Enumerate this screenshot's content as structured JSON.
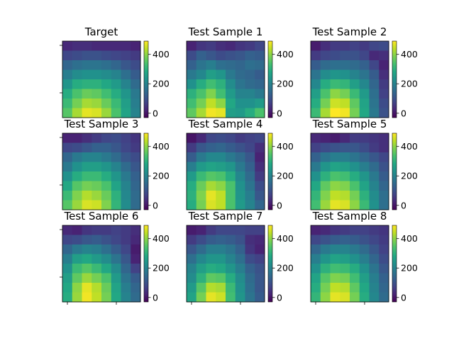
{
  "chart_data": {
    "type": "heatmap",
    "layout": {
      "rows": 3,
      "cols": 3
    },
    "colormap": "viridis",
    "colorbar": {
      "range": [
        -30,
        490
      ],
      "ticks": [
        0,
        200,
        400
      ],
      "tick_labels": [
        "0",
        "200",
        "400"
      ]
    },
    "grid": false,
    "x_ticks_shown": [
      "bottom-row only, unlabeled"
    ],
    "y_ticks_shown": [
      "left-column only, unlabeled"
    ],
    "panels": [
      {
        "title": "Target",
        "values": [
          [
            30,
            40,
            40,
            30,
            30,
            30,
            30,
            20
          ],
          [
            80,
            90,
            100,
            100,
            90,
            80,
            70,
            60
          ],
          [
            140,
            160,
            170,
            170,
            160,
            140,
            110,
            90
          ],
          [
            190,
            220,
            230,
            230,
            220,
            200,
            160,
            120
          ],
          [
            240,
            290,
            300,
            300,
            280,
            250,
            200,
            150
          ],
          [
            290,
            340,
            370,
            360,
            330,
            290,
            240,
            180
          ],
          [
            320,
            380,
            420,
            410,
            370,
            320,
            260,
            190
          ],
          [
            350,
            420,
            470,
            460,
            410,
            340,
            270,
            200
          ]
        ]
      },
      {
        "title": "Test Sample 1",
        "values": [
          [
            20,
            50,
            60,
            40,
            30,
            50,
            60,
            80
          ],
          [
            90,
            130,
            110,
            90,
            100,
            110,
            130,
            120
          ],
          [
            130,
            170,
            190,
            160,
            150,
            140,
            160,
            150
          ],
          [
            180,
            210,
            260,
            240,
            180,
            150,
            140,
            120
          ],
          [
            230,
            290,
            330,
            300,
            220,
            170,
            150,
            140
          ],
          [
            300,
            340,
            390,
            330,
            250,
            200,
            200,
            180
          ],
          [
            330,
            380,
            440,
            400,
            280,
            230,
            230,
            250
          ],
          [
            360,
            420,
            480,
            470,
            260,
            250,
            290,
            340
          ]
        ]
      },
      {
        "title": "Test Sample 2",
        "values": [
          [
            10,
            40,
            60,
            60,
            70,
            60,
            80,
            90
          ],
          [
            60,
            80,
            90,
            100,
            100,
            80,
            30,
            40
          ],
          [
            120,
            150,
            160,
            160,
            150,
            130,
            80,
            20
          ],
          [
            170,
            220,
            240,
            230,
            200,
            170,
            120,
            40
          ],
          [
            210,
            290,
            320,
            310,
            260,
            210,
            140,
            60
          ],
          [
            260,
            340,
            400,
            380,
            320,
            250,
            160,
            70
          ],
          [
            290,
            380,
            450,
            440,
            360,
            270,
            170,
            90
          ],
          [
            320,
            420,
            490,
            480,
            380,
            280,
            180,
            100
          ]
        ]
      },
      {
        "title": "Test Sample 3",
        "values": [
          [
            20,
            20,
            40,
            60,
            80,
            90,
            70,
            50
          ],
          [
            80,
            90,
            110,
            130,
            130,
            110,
            80,
            60
          ],
          [
            140,
            180,
            200,
            200,
            180,
            150,
            110,
            90
          ],
          [
            180,
            230,
            260,
            260,
            240,
            200,
            150,
            110
          ],
          [
            230,
            290,
            320,
            320,
            290,
            240,
            180,
            130
          ],
          [
            280,
            350,
            380,
            370,
            340,
            270,
            200,
            140
          ],
          [
            320,
            390,
            430,
            410,
            370,
            300,
            210,
            150
          ],
          [
            350,
            410,
            460,
            450,
            390,
            310,
            220,
            150
          ]
        ]
      },
      {
        "title": "Test Sample 4",
        "values": [
          [
            0,
            30,
            80,
            90,
            80,
            60,
            70,
            80
          ],
          [
            60,
            110,
            130,
            140,
            120,
            100,
            80,
            40
          ],
          [
            120,
            180,
            210,
            210,
            180,
            150,
            110,
            20
          ],
          [
            190,
            250,
            270,
            260,
            240,
            180,
            130,
            40
          ],
          [
            250,
            320,
            350,
            340,
            290,
            210,
            150,
            60
          ],
          [
            290,
            370,
            420,
            400,
            340,
            230,
            170,
            90
          ],
          [
            300,
            390,
            470,
            440,
            340,
            240,
            190,
            110
          ],
          [
            290,
            380,
            460,
            440,
            340,
            250,
            200,
            140
          ]
        ]
      },
      {
        "title": "Test Sample 5",
        "values": [
          [
            30,
            20,
            10,
            30,
            60,
            60,
            50,
            40
          ],
          [
            70,
            90,
            100,
            110,
            110,
            90,
            60,
            40
          ],
          [
            130,
            170,
            190,
            190,
            170,
            140,
            110,
            80
          ],
          [
            180,
            240,
            270,
            260,
            230,
            190,
            150,
            100
          ],
          [
            230,
            300,
            340,
            330,
            290,
            240,
            180,
            120
          ],
          [
            280,
            360,
            400,
            390,
            340,
            270,
            200,
            140
          ],
          [
            310,
            390,
            440,
            430,
            380,
            300,
            220,
            160
          ],
          [
            330,
            410,
            470,
            460,
            400,
            320,
            230,
            160
          ]
        ]
      },
      {
        "title": "Test Sample 6",
        "values": [
          [
            30,
            20,
            50,
            60,
            60,
            70,
            60,
            40
          ],
          [
            80,
            90,
            110,
            120,
            100,
            80,
            60,
            30
          ],
          [
            140,
            180,
            200,
            190,
            160,
            120,
            80,
            10
          ],
          [
            190,
            260,
            280,
            250,
            220,
            170,
            110,
            20
          ],
          [
            230,
            320,
            350,
            320,
            280,
            220,
            140,
            70
          ],
          [
            260,
            360,
            410,
            380,
            340,
            250,
            170,
            120
          ],
          [
            280,
            400,
            470,
            430,
            370,
            270,
            190,
            140
          ],
          [
            290,
            410,
            480,
            440,
            380,
            280,
            200,
            150
          ]
        ]
      },
      {
        "title": "Test Sample 7",
        "values": [
          [
            10,
            20,
            60,
            80,
            80,
            80,
            70,
            70
          ],
          [
            60,
            90,
            120,
            130,
            120,
            100,
            40,
            30
          ],
          [
            110,
            150,
            190,
            190,
            170,
            130,
            50,
            20
          ],
          [
            160,
            210,
            240,
            240,
            200,
            160,
            90,
            70
          ],
          [
            200,
            260,
            290,
            280,
            240,
            190,
            130,
            100
          ],
          [
            220,
            300,
            360,
            350,
            290,
            220,
            150,
            110
          ],
          [
            250,
            350,
            430,
            420,
            320,
            230,
            160,
            110
          ],
          [
            270,
            380,
            470,
            450,
            330,
            240,
            170,
            120
          ]
        ]
      },
      {
        "title": "Test Sample 8",
        "values": [
          [
            20,
            30,
            50,
            60,
            70,
            70,
            60,
            50
          ],
          [
            80,
            100,
            120,
            130,
            120,
            100,
            80,
            60
          ],
          [
            140,
            180,
            200,
            200,
            180,
            150,
            110,
            70
          ],
          [
            190,
            240,
            270,
            260,
            230,
            190,
            140,
            90
          ],
          [
            230,
            300,
            330,
            320,
            290,
            230,
            170,
            110
          ],
          [
            270,
            350,
            390,
            380,
            330,
            260,
            190,
            130
          ],
          [
            290,
            380,
            440,
            430,
            360,
            280,
            200,
            140
          ],
          [
            310,
            400,
            470,
            460,
            380,
            290,
            210,
            150
          ]
        ]
      }
    ]
  }
}
